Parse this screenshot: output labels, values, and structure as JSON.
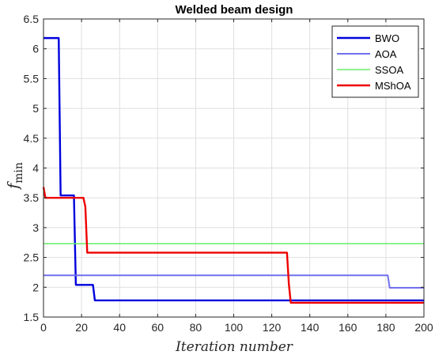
{
  "chart_data": {
    "type": "line",
    "title": "Welded beam design",
    "xlabel": "Iteration   number",
    "ylabel_main": "f",
    "ylabel_sub": "min",
    "xlim": [
      0,
      200
    ],
    "ylim": [
      1.5,
      6.5
    ],
    "xticks": [
      0,
      20,
      40,
      60,
      80,
      100,
      120,
      140,
      160,
      180,
      200
    ],
    "yticks": [
      1.5,
      2,
      2.5,
      3,
      3.5,
      4,
      4.5,
      5,
      5.5,
      6,
      6.5
    ],
    "grid": true,
    "legend_position": "top-right",
    "series": [
      {
        "name": "BWO",
        "color": "#0000dd",
        "width": 2.4,
        "x": [
          0,
          8,
          9,
          16,
          17,
          26,
          27,
          200
        ],
        "y": [
          6.18,
          6.18,
          3.54,
          3.54,
          2.04,
          2.04,
          1.78,
          1.78
        ]
      },
      {
        "name": "AOA",
        "color": "#7070ee",
        "width": 2.0,
        "x": [
          0,
          181,
          182,
          200
        ],
        "y": [
          2.2,
          2.2,
          1.99,
          1.99
        ]
      },
      {
        "name": "SSOA",
        "color": "#66ee66",
        "width": 1.6,
        "x": [
          0,
          200
        ],
        "y": [
          2.73,
          2.73
        ]
      },
      {
        "name": "MShOA",
        "color": "#ee0000",
        "width": 2.4,
        "x": [
          0,
          1,
          21,
          22,
          23,
          128,
          129,
          130,
          200
        ],
        "y": [
          3.68,
          3.5,
          3.5,
          3.35,
          2.58,
          2.58,
          2.05,
          1.74,
          1.74
        ]
      }
    ]
  }
}
